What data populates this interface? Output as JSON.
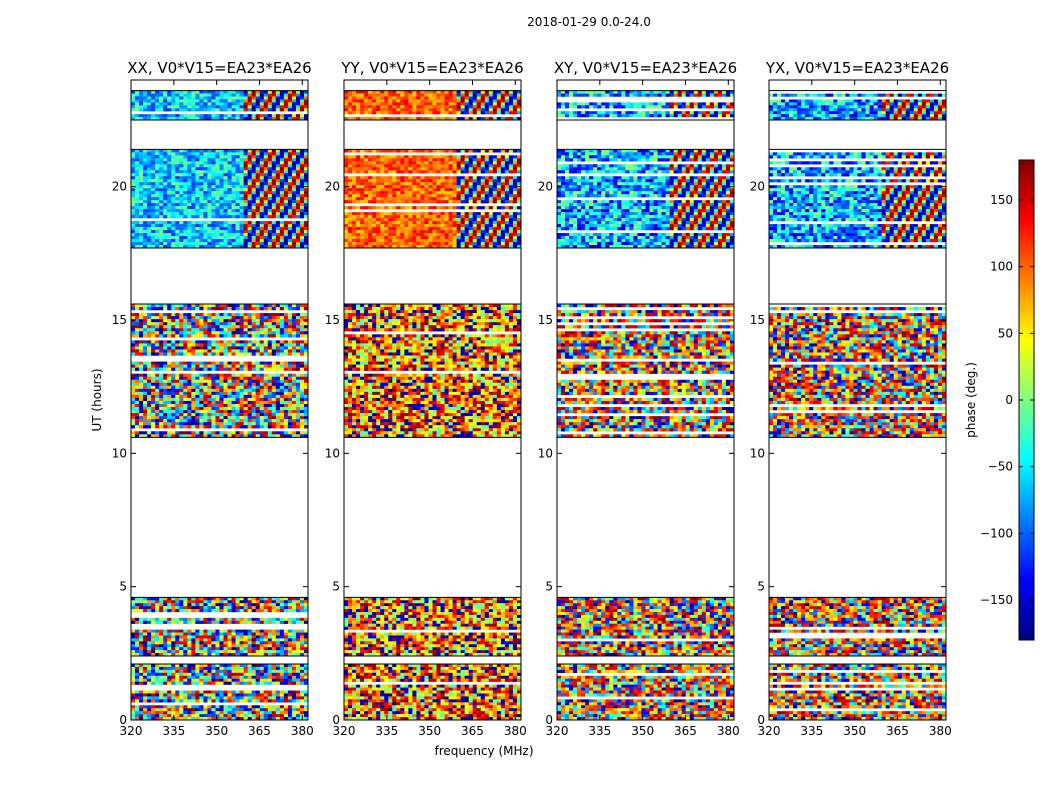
{
  "figure": {
    "suptitle": "2018-01-29 0.0-24.0",
    "xlabel": "frequency (MHz)",
    "ylabel": "UT (hours)",
    "colorbar_label": "phase (deg.)",
    "colorbar_ticks": [
      150,
      100,
      50,
      0,
      -50,
      -100,
      -150
    ],
    "colorbar_tick_labels": [
      "150",
      "100",
      "50",
      "0",
      "−50",
      "−100",
      "−150"
    ],
    "colormap": [
      "#00007f",
      "#0000ff",
      "#007fff",
      "#00ffff",
      "#7fff7f",
      "#ffff00",
      "#ff7f00",
      "#ff0000",
      "#7f0000"
    ]
  },
  "chart_data": [
    {
      "type": "heatmap",
      "title": "XX, V0*V15=EA23*EA26",
      "pol": "XX",
      "baseline": "V0*V15=EA23*EA26",
      "xlabel": "frequency (MHz)",
      "ylabel": "UT (hours)",
      "xlim": [
        320,
        382
      ],
      "ylim": [
        0,
        24
      ],
      "xticks": [
        320,
        335,
        350,
        365,
        380
      ],
      "yticks": [
        0,
        5,
        10,
        15,
        20
      ],
      "value_label": "phase (deg.)",
      "value_range": [
        -180,
        180
      ],
      "mean_phase": -60,
      "phase_spread": 60,
      "data_segments_hours": [
        [
          0.0,
          2.1
        ],
        [
          2.4,
          4.6
        ],
        [
          10.6,
          15.6
        ],
        [
          17.7,
          21.4
        ],
        [
          22.5,
          23.6
        ]
      ],
      "gaps_hours": [
        [
          2.1,
          2.4
        ],
        [
          4.6,
          10.6
        ],
        [
          15.6,
          17.7
        ],
        [
          21.4,
          22.5
        ],
        [
          23.6,
          24.0
        ]
      ]
    },
    {
      "type": "heatmap",
      "title": "YY, V0*V15=EA23*EA26",
      "pol": "YY",
      "baseline": "V0*V15=EA23*EA26",
      "xlabel": "frequency (MHz)",
      "ylabel": "UT (hours)",
      "xlim": [
        320,
        382
      ],
      "ylim": [
        0,
        24
      ],
      "xticks": [
        320,
        335,
        350,
        365,
        380
      ],
      "yticks": [
        0,
        5,
        10,
        15,
        20
      ],
      "value_label": "phase (deg.)",
      "value_range": [
        -180,
        180
      ],
      "mean_phase": 100,
      "phase_spread": 40,
      "data_segments_hours": [
        [
          0.0,
          2.1
        ],
        [
          2.4,
          4.6
        ],
        [
          10.6,
          15.6
        ],
        [
          17.7,
          21.4
        ],
        [
          22.5,
          23.6
        ]
      ],
      "gaps_hours": [
        [
          2.1,
          2.4
        ],
        [
          4.6,
          10.6
        ],
        [
          15.6,
          17.7
        ],
        [
          21.4,
          22.5
        ],
        [
          23.6,
          24.0
        ]
      ]
    },
    {
      "type": "heatmap",
      "title": "XY, V0*V15=EA23*EA26",
      "pol": "XY",
      "baseline": "V0*V15=EA23*EA26",
      "xlabel": "frequency (MHz)",
      "ylabel": "UT (hours)",
      "xlim": [
        320,
        382
      ],
      "ylim": [
        0,
        24
      ],
      "xticks": [
        320,
        335,
        350,
        365,
        380
      ],
      "yticks": [
        0,
        5,
        10,
        15,
        20
      ],
      "value_label": "phase (deg.)",
      "value_range": [
        -180,
        180
      ],
      "mean_phase": -70,
      "phase_spread": 80,
      "data_segments_hours": [
        [
          0.0,
          2.1
        ],
        [
          2.4,
          4.6
        ],
        [
          10.6,
          15.6
        ],
        [
          17.7,
          21.4
        ],
        [
          22.5,
          23.6
        ]
      ],
      "gaps_hours": [
        [
          2.1,
          2.4
        ],
        [
          4.6,
          10.6
        ],
        [
          15.6,
          17.7
        ],
        [
          21.4,
          22.5
        ],
        [
          23.6,
          24.0
        ]
      ]
    },
    {
      "type": "heatmap",
      "title": "YX, V0*V15=EA23*EA26",
      "pol": "YX",
      "baseline": "V0*V15=EA23*EA26",
      "xlabel": "frequency (MHz)",
      "ylabel": "UT (hours)",
      "xlim": [
        320,
        382
      ],
      "ylim": [
        0,
        24
      ],
      "xticks": [
        320,
        335,
        350,
        365,
        380
      ],
      "yticks": [
        0,
        5,
        10,
        15,
        20
      ],
      "value_label": "phase (deg.)",
      "value_range": [
        -180,
        180
      ],
      "mean_phase": -70,
      "phase_spread": 80,
      "data_segments_hours": [
        [
          0.0,
          2.1
        ],
        [
          2.4,
          4.6
        ],
        [
          10.6,
          15.6
        ],
        [
          17.7,
          21.4
        ],
        [
          22.5,
          23.6
        ]
      ],
      "gaps_hours": [
        [
          2.1,
          2.4
        ],
        [
          4.6,
          10.6
        ],
        [
          15.6,
          17.7
        ],
        [
          21.4,
          22.5
        ],
        [
          23.6,
          24.0
        ]
      ]
    }
  ]
}
